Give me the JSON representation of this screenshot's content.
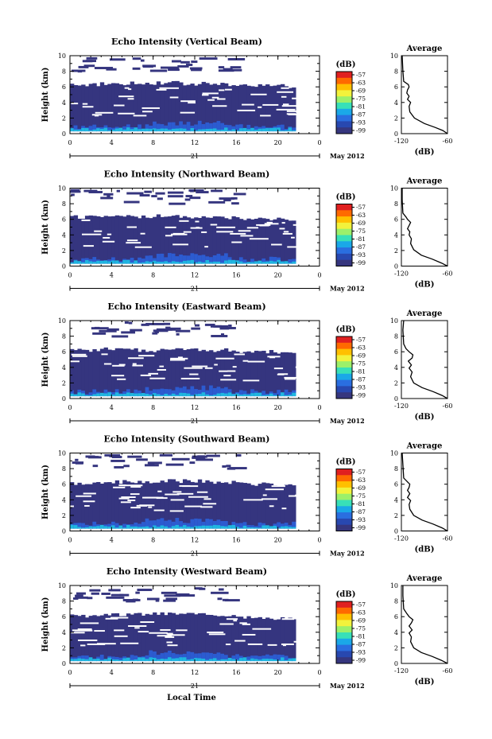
{
  "chart_data": [
    {
      "type": "heatmap",
      "title": "Echo Intensity (Vertical Beam)",
      "ylabel": "Height (km)",
      "xlabel": "",
      "date_label": "21",
      "month_label": "May 2012",
      "xlim": [
        0,
        24
      ],
      "ylim": [
        0,
        10
      ],
      "x_ticks": [
        "0",
        "4",
        "8",
        "12",
        "16",
        "20",
        "0"
      ],
      "y_ticks": [
        "0",
        "2",
        "4",
        "6",
        "8",
        "10"
      ],
      "colorbar": {
        "unit": "(dB)",
        "ticks": [
          "-57",
          "-63",
          "-69",
          "-75",
          "-81",
          "-87",
          "-93",
          "-99"
        ],
        "colors": [
          "#e02020",
          "#ff6a00",
          "#ffc000",
          "#f2f23c",
          "#9cf06a",
          "#38e0b8",
          "#1aa8e8",
          "#2a6ee0",
          "#2848b0",
          "#36367e"
        ]
      },
      "data_top_km": [
        6.3,
        6.4,
        6.5,
        6.5,
        6.4,
        6.3,
        6.2,
        6.1
      ],
      "average_profile": {
        "title": "Average",
        "xlabel": "(dB)",
        "xlim": [
          -120,
          -60
        ],
        "x_ticks": [
          "-120",
          "-60"
        ],
        "y_ticks": [
          "0",
          "2",
          "4",
          "6",
          "8",
          "10"
        ],
        "x": [
          -58,
          -66,
          -76,
          -90,
          -103,
          -109,
          -110,
          -108,
          -112,
          -110,
          -113,
          -112,
          -110,
          -111,
          -117,
          -118,
          -119
        ],
        "y": [
          0.0,
          0.4,
          0.8,
          1.3,
          2.0,
          2.8,
          3.5,
          4.0,
          4.4,
          4.8,
          5.2,
          5.6,
          6.0,
          6.3,
          6.7,
          8.0,
          10.0
        ]
      }
    },
    {
      "type": "heatmap",
      "title": "Echo Intensity (Northward Beam)",
      "ylabel": "Height (km)",
      "xlabel": "",
      "date_label": "21",
      "month_label": "May 2012",
      "xlim": [
        0,
        24
      ],
      "ylim": [
        0,
        10
      ],
      "x_ticks": [
        "0",
        "4",
        "8",
        "12",
        "16",
        "20",
        "0"
      ],
      "y_ticks": [
        "0",
        "2",
        "4",
        "6",
        "8",
        "10"
      ],
      "colorbar": {
        "unit": "(dB)",
        "ticks": [
          "-57",
          "-63",
          "-69",
          "-75",
          "-81",
          "-87",
          "-93",
          "-99"
        ],
        "colors": [
          "#e02020",
          "#ff6a00",
          "#ffc000",
          "#f2f23c",
          "#9cf06a",
          "#38e0b8",
          "#1aa8e8",
          "#2a6ee0",
          "#2848b0",
          "#36367e"
        ]
      },
      "data_top_km": [
        6.3,
        6.4,
        6.3,
        6.4,
        6.3,
        6.2,
        6.1,
        6.0
      ],
      "average_profile": {
        "title": "Average",
        "xlabel": "(dB)",
        "xlim": [
          -120,
          -60
        ],
        "x_ticks": [
          "-120",
          "-60"
        ],
        "y_ticks": [
          "0",
          "2",
          "4",
          "6",
          "8",
          "10"
        ],
        "x": [
          -59,
          -68,
          -80,
          -94,
          -104,
          -108,
          -107,
          -110,
          -109,
          -112,
          -110,
          -108,
          -112,
          -114,
          -118,
          -119,
          -119
        ],
        "y": [
          0.0,
          0.4,
          0.9,
          1.4,
          2.1,
          2.9,
          3.5,
          4.0,
          4.4,
          4.8,
          5.2,
          5.6,
          6.0,
          6.3,
          6.8,
          8.5,
          10.0
        ]
      }
    },
    {
      "type": "heatmap",
      "title": "Echo Intensity (Eastward Beam)",
      "ylabel": "Height (km)",
      "xlabel": "",
      "date_label": "21",
      "month_label": "May 2012",
      "xlim": [
        0,
        24
      ],
      "ylim": [
        0,
        10
      ],
      "x_ticks": [
        "0",
        "4",
        "8",
        "12",
        "16",
        "20",
        "0"
      ],
      "y_ticks": [
        "0",
        "2",
        "4",
        "6",
        "8",
        "10"
      ],
      "colorbar": {
        "unit": "(dB)",
        "ticks": [
          "-57",
          "-63",
          "-69",
          "-75",
          "-81",
          "-87",
          "-93",
          "-99"
        ],
        "colors": [
          "#e02020",
          "#ff6a00",
          "#ffc000",
          "#f2f23c",
          "#9cf06a",
          "#38e0b8",
          "#1aa8e8",
          "#2a6ee0",
          "#2848b0",
          "#36367e"
        ]
      },
      "data_top_km": [
        6.2,
        6.3,
        6.2,
        6.4,
        6.3,
        6.2,
        6.0,
        6.0
      ],
      "average_profile": {
        "title": "Average",
        "xlabel": "(dB)",
        "xlim": [
          -120,
          -60
        ],
        "x_ticks": [
          "-120",
          "-60"
        ],
        "y_ticks": [
          "0",
          "2",
          "4",
          "6",
          "8",
          "10"
        ],
        "x": [
          -59,
          -67,
          -79,
          -93,
          -104,
          -108,
          -106,
          -110,
          -107,
          -111,
          -106,
          -105,
          -110,
          -114,
          -117,
          -118,
          -117
        ],
        "y": [
          0.0,
          0.4,
          0.9,
          1.4,
          2.0,
          2.8,
          3.4,
          3.9,
          4.3,
          4.8,
          5.2,
          5.6,
          6.0,
          6.4,
          7.0,
          8.8,
          10.0
        ]
      }
    },
    {
      "type": "heatmap",
      "title": "Echo Intensity (Southward Beam)",
      "ylabel": "Height (km)",
      "xlabel": "",
      "date_label": "21",
      "month_label": "May 2012",
      "xlim": [
        0,
        24
      ],
      "ylim": [
        0,
        10
      ],
      "x_ticks": [
        "0",
        "4",
        "8",
        "12",
        "16",
        "20",
        "0"
      ],
      "y_ticks": [
        "0",
        "2",
        "4",
        "6",
        "8",
        "10"
      ],
      "colorbar": {
        "unit": "(dB)",
        "ticks": [
          "-57",
          "-63",
          "-69",
          "-75",
          "-81",
          "-87",
          "-93",
          "-99"
        ],
        "colors": [
          "#e02020",
          "#ff6a00",
          "#ffc000",
          "#f2f23c",
          "#9cf06a",
          "#38e0b8",
          "#1aa8e8",
          "#2a6ee0",
          "#2848b0",
          "#36367e"
        ]
      },
      "data_top_km": [
        6.1,
        6.3,
        6.2,
        6.4,
        6.4,
        6.2,
        6.0,
        6.0
      ],
      "average_profile": {
        "title": "Average",
        "xlabel": "(dB)",
        "xlim": [
          -120,
          -60
        ],
        "x_ticks": [
          "-120",
          "-60"
        ],
        "y_ticks": [
          "0",
          "2",
          "4",
          "6",
          "8",
          "10"
        ],
        "x": [
          -59,
          -67,
          -79,
          -93,
          -104,
          -109,
          -110,
          -108,
          -112,
          -109,
          -112,
          -110,
          -109,
          -112,
          -117,
          -118,
          -119
        ],
        "y": [
          0.0,
          0.4,
          0.9,
          1.4,
          2.0,
          2.8,
          3.4,
          3.9,
          4.3,
          4.8,
          5.2,
          5.6,
          6.0,
          6.3,
          6.8,
          8.5,
          10.0
        ]
      }
    },
    {
      "type": "heatmap",
      "title": "Echo Intensity (Westward Beam)",
      "ylabel": "Height (km)",
      "xlabel": "Local Time",
      "date_label": "21",
      "month_label": "May 2012",
      "xlim": [
        0,
        24
      ],
      "ylim": [
        0,
        10
      ],
      "x_ticks": [
        "0",
        "4",
        "8",
        "12",
        "16",
        "20",
        "0"
      ],
      "y_ticks": [
        "0",
        "2",
        "4",
        "6",
        "8",
        "10"
      ],
      "colorbar": {
        "unit": "(dB)",
        "ticks": [
          "-57",
          "-63",
          "-69",
          "-75",
          "-81",
          "-87",
          "-93",
          "-99"
        ],
        "colors": [
          "#e02020",
          "#ff6a00",
          "#ffc000",
          "#f2f23c",
          "#9cf06a",
          "#38e0b8",
          "#1aa8e8",
          "#2a6ee0",
          "#2848b0",
          "#36367e"
        ]
      },
      "data_top_km": [
        6.1,
        6.2,
        6.3,
        6.4,
        6.3,
        6.2,
        5.9,
        5.8
      ],
      "average_profile": {
        "title": "Average",
        "xlabel": "(dB)",
        "xlim": [
          -120,
          -60
        ],
        "x_ticks": [
          "-120",
          "-60"
        ],
        "y_ticks": [
          "0",
          "2",
          "4",
          "6",
          "8",
          "10"
        ],
        "x": [
          -59,
          -68,
          -80,
          -94,
          -104,
          -108,
          -107,
          -110,
          -106,
          -110,
          -107,
          -105,
          -110,
          -113,
          -117,
          -118,
          -118
        ],
        "y": [
          0.0,
          0.4,
          0.9,
          1.4,
          2.0,
          2.8,
          3.4,
          3.9,
          4.3,
          4.8,
          5.2,
          5.6,
          6.0,
          6.4,
          7.0,
          8.7,
          10.0
        ]
      }
    }
  ]
}
